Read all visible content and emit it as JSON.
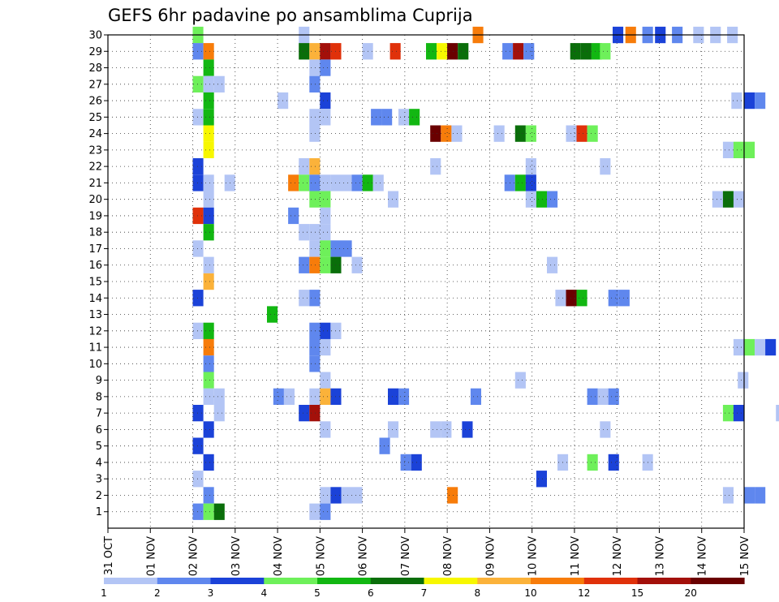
{
  "chart_data": {
    "type": "heatmap",
    "title": "GEFS 6hr padavine po ansamblima Cuprija",
    "xlabel": "",
    "ylabel": "",
    "x_ticks": [
      "31 OCT",
      "01 NOV",
      "02 NOV",
      "03 NOV",
      "04 NOV",
      "05 NOV",
      "06 NOV",
      "07 NOV",
      "08 NOV",
      "09 NOV",
      "10 NOV",
      "11 NOV",
      "12 NOV",
      "13 NOV",
      "14 NOV",
      "15 NOV"
    ],
    "xlim": [
      0,
      15
    ],
    "y_ticks": [
      1,
      2,
      3,
      4,
      5,
      6,
      7,
      8,
      9,
      10,
      11,
      12,
      13,
      14,
      15,
      16,
      17,
      18,
      19,
      20,
      21,
      22,
      23,
      24,
      25,
      26,
      27,
      28,
      29,
      30
    ],
    "ylim": [
      0,
      30
    ],
    "grid": "dotted",
    "colorbar": {
      "labels": [
        "1",
        "2",
        "3",
        "4",
        "5",
        "6",
        "7",
        "8",
        "10",
        "12",
        "15",
        "20"
      ],
      "colors": [
        "#b3c5f5",
        "#5f87ee",
        "#1b42d8",
        "#6ef05a",
        "#12b712",
        "#0a6e0a",
        "#f7f700",
        "#fbb23a",
        "#f77c0a",
        "#e0310a",
        "#a3100a",
        "#6a0000"
      ]
    },
    "cells": [
      [
        2,
        30,
        4
      ],
      [
        4.5,
        30,
        1
      ],
      [
        8.6,
        30,
        9
      ],
      [
        11.9,
        30,
        3
      ],
      [
        12.2,
        30,
        9
      ],
      [
        12.6,
        30,
        2
      ],
      [
        12.9,
        30,
        3
      ],
      [
        13.3,
        30,
        2
      ],
      [
        13.8,
        30,
        1
      ],
      [
        14.2,
        30,
        1
      ],
      [
        14.6,
        30,
        1
      ],
      [
        2,
        29,
        2
      ],
      [
        2.25,
        29,
        9
      ],
      [
        4.5,
        29,
        6
      ],
      [
        4.75,
        29,
        8
      ],
      [
        5,
        29,
        11
      ],
      [
        5.25,
        29,
        10
      ],
      [
        6,
        29,
        1
      ],
      [
        6.65,
        29,
        10
      ],
      [
        7.5,
        29,
        5
      ],
      [
        7.75,
        29,
        7
      ],
      [
        8,
        29,
        12
      ],
      [
        8.25,
        29,
        6
      ],
      [
        9.3,
        29,
        2
      ],
      [
        9.55,
        29,
        11
      ],
      [
        9.8,
        29,
        2
      ],
      [
        10.9,
        29,
        6
      ],
      [
        11.15,
        29,
        6
      ],
      [
        11.4,
        29,
        5
      ],
      [
        11.6,
        29,
        4
      ],
      [
        2.25,
        28,
        5
      ],
      [
        4.75,
        28,
        1
      ],
      [
        5,
        28,
        2
      ],
      [
        2,
        27,
        4
      ],
      [
        2.25,
        27,
        1
      ],
      [
        2.5,
        27,
        1
      ],
      [
        4.75,
        27,
        2
      ],
      [
        2.25,
        26,
        5
      ],
      [
        4,
        26,
        1
      ],
      [
        5,
        26,
        3
      ],
      [
        14.7,
        26,
        1
      ],
      [
        15,
        26,
        3
      ],
      [
        15.25,
        26,
        2
      ],
      [
        2,
        25,
        1
      ],
      [
        2.25,
        25,
        5
      ],
      [
        4.75,
        25,
        1
      ],
      [
        5,
        25,
        1
      ],
      [
        6.2,
        25,
        2
      ],
      [
        6.45,
        25,
        2
      ],
      [
        6.85,
        25,
        1
      ],
      [
        7.1,
        25,
        5
      ],
      [
        2.25,
        24,
        7
      ],
      [
        4.75,
        24,
        1
      ],
      [
        7.6,
        24,
        12
      ],
      [
        7.85,
        24,
        9
      ],
      [
        8.1,
        24,
        1
      ],
      [
        9.1,
        24,
        1
      ],
      [
        9.6,
        24,
        6
      ],
      [
        9.85,
        24,
        4
      ],
      [
        10.8,
        24,
        1
      ],
      [
        11.05,
        24,
        10
      ],
      [
        11.3,
        24,
        4
      ],
      [
        2.25,
        23,
        7
      ],
      [
        14.5,
        23,
        1
      ],
      [
        14.75,
        23,
        4
      ],
      [
        15,
        23,
        4
      ],
      [
        2,
        22,
        3
      ],
      [
        4.5,
        22,
        1
      ],
      [
        4.75,
        22,
        8
      ],
      [
        7.6,
        22,
        1
      ],
      [
        9.85,
        22,
        1
      ],
      [
        11.6,
        22,
        1
      ],
      [
        2,
        21,
        3
      ],
      [
        2.25,
        21,
        1
      ],
      [
        2.75,
        21,
        1
      ],
      [
        4.25,
        21,
        9
      ],
      [
        4.5,
        21,
        4
      ],
      [
        4.75,
        21,
        2
      ],
      [
        5,
        21,
        1
      ],
      [
        5.25,
        21,
        1
      ],
      [
        5.5,
        21,
        1
      ],
      [
        5.75,
        21,
        2
      ],
      [
        6,
        21,
        5
      ],
      [
        6.25,
        21,
        1
      ],
      [
        9.35,
        21,
        2
      ],
      [
        9.6,
        21,
        5
      ],
      [
        9.85,
        21,
        3
      ],
      [
        2.25,
        20,
        1
      ],
      [
        4.75,
        20,
        4
      ],
      [
        5,
        20,
        4
      ],
      [
        6.6,
        20,
        1
      ],
      [
        9.85,
        20,
        1
      ],
      [
        10.1,
        20,
        5
      ],
      [
        10.35,
        20,
        2
      ],
      [
        14.25,
        20,
        1
      ],
      [
        14.5,
        20,
        6
      ],
      [
        14.75,
        20,
        1
      ],
      [
        2,
        19,
        10
      ],
      [
        2.25,
        19,
        3
      ],
      [
        4.25,
        19,
        2
      ],
      [
        5,
        19,
        1
      ],
      [
        2.25,
        18,
        5
      ],
      [
        4.5,
        18,
        1
      ],
      [
        4.75,
        18,
        1
      ],
      [
        5,
        18,
        1
      ],
      [
        2,
        17,
        1
      ],
      [
        4.75,
        17,
        1
      ],
      [
        5,
        17,
        4
      ],
      [
        5.25,
        17,
        2
      ],
      [
        5.5,
        17,
        2
      ],
      [
        2.25,
        16,
        1
      ],
      [
        4.5,
        16,
        2
      ],
      [
        4.75,
        16,
        9
      ],
      [
        5,
        16,
        4
      ],
      [
        5.25,
        16,
        6
      ],
      [
        5.75,
        16,
        1
      ],
      [
        10.35,
        16,
        1
      ],
      [
        2.25,
        15,
        8
      ],
      [
        2,
        14,
        3
      ],
      [
        4.5,
        14,
        1
      ],
      [
        4.75,
        14,
        2
      ],
      [
        10.55,
        14,
        1
      ],
      [
        10.8,
        14,
        12
      ],
      [
        11.05,
        14,
        5
      ],
      [
        11.8,
        14,
        2
      ],
      [
        12.05,
        14,
        2
      ],
      [
        3.75,
        13,
        5
      ],
      [
        2,
        12,
        1
      ],
      [
        2.25,
        12,
        5
      ],
      [
        4.75,
        12,
        2
      ],
      [
        5,
        12,
        3
      ],
      [
        5.25,
        12,
        1
      ],
      [
        2.25,
        11,
        9
      ],
      [
        4.75,
        11,
        2
      ],
      [
        5,
        11,
        1
      ],
      [
        14.75,
        11,
        1
      ],
      [
        15,
        11,
        4
      ],
      [
        15.25,
        11,
        1
      ],
      [
        15.5,
        11,
        3
      ],
      [
        2.25,
        10,
        2
      ],
      [
        4.75,
        10,
        2
      ],
      [
        2.25,
        9,
        4
      ],
      [
        5,
        9,
        1
      ],
      [
        9.6,
        9,
        1
      ],
      [
        14.85,
        9,
        1
      ],
      [
        2.25,
        8,
        1
      ],
      [
        2.5,
        8,
        1
      ],
      [
        3.9,
        8,
        2
      ],
      [
        4.15,
        8,
        1
      ],
      [
        4.75,
        8,
        1
      ],
      [
        5,
        8,
        8
      ],
      [
        5.25,
        8,
        3
      ],
      [
        6.6,
        8,
        3
      ],
      [
        6.85,
        8,
        2
      ],
      [
        8.55,
        8,
        2
      ],
      [
        11.3,
        8,
        2
      ],
      [
        11.55,
        8,
        1
      ],
      [
        11.8,
        8,
        2
      ],
      [
        2,
        7,
        3
      ],
      [
        2.5,
        7,
        1
      ],
      [
        4.5,
        7,
        3
      ],
      [
        4.75,
        7,
        11
      ],
      [
        14.5,
        7,
        4
      ],
      [
        14.75,
        7,
        3
      ],
      [
        15.75,
        7,
        1
      ],
      [
        2.25,
        6,
        3
      ],
      [
        5,
        6,
        1
      ],
      [
        6.6,
        6,
        1
      ],
      [
        7.6,
        6,
        1
      ],
      [
        7.85,
        6,
        1
      ],
      [
        8.35,
        6,
        3
      ],
      [
        11.6,
        6,
        1
      ],
      [
        2,
        5,
        3
      ],
      [
        6.4,
        5,
        2
      ],
      [
        2.25,
        4,
        3
      ],
      [
        6.9,
        4,
        2
      ],
      [
        7.15,
        4,
        3
      ],
      [
        10.6,
        4,
        1
      ],
      [
        11.3,
        4,
        4
      ],
      [
        11.8,
        4,
        3
      ],
      [
        12.6,
        4,
        1
      ],
      [
        2,
        3,
        1
      ],
      [
        10.1,
        3,
        3
      ],
      [
        2.25,
        2,
        2
      ],
      [
        5,
        2,
        1
      ],
      [
        5.25,
        2,
        3
      ],
      [
        5.5,
        2,
        1
      ],
      [
        5.75,
        2,
        1
      ],
      [
        8,
        2,
        9
      ],
      [
        14.5,
        2,
        1
      ],
      [
        15,
        2,
        2
      ],
      [
        15.25,
        2,
        2
      ],
      [
        2,
        1,
        2
      ],
      [
        2.25,
        1,
        4
      ],
      [
        2.5,
        1,
        6
      ],
      [
        4.75,
        1,
        1
      ],
      [
        5,
        1,
        2
      ]
    ]
  }
}
